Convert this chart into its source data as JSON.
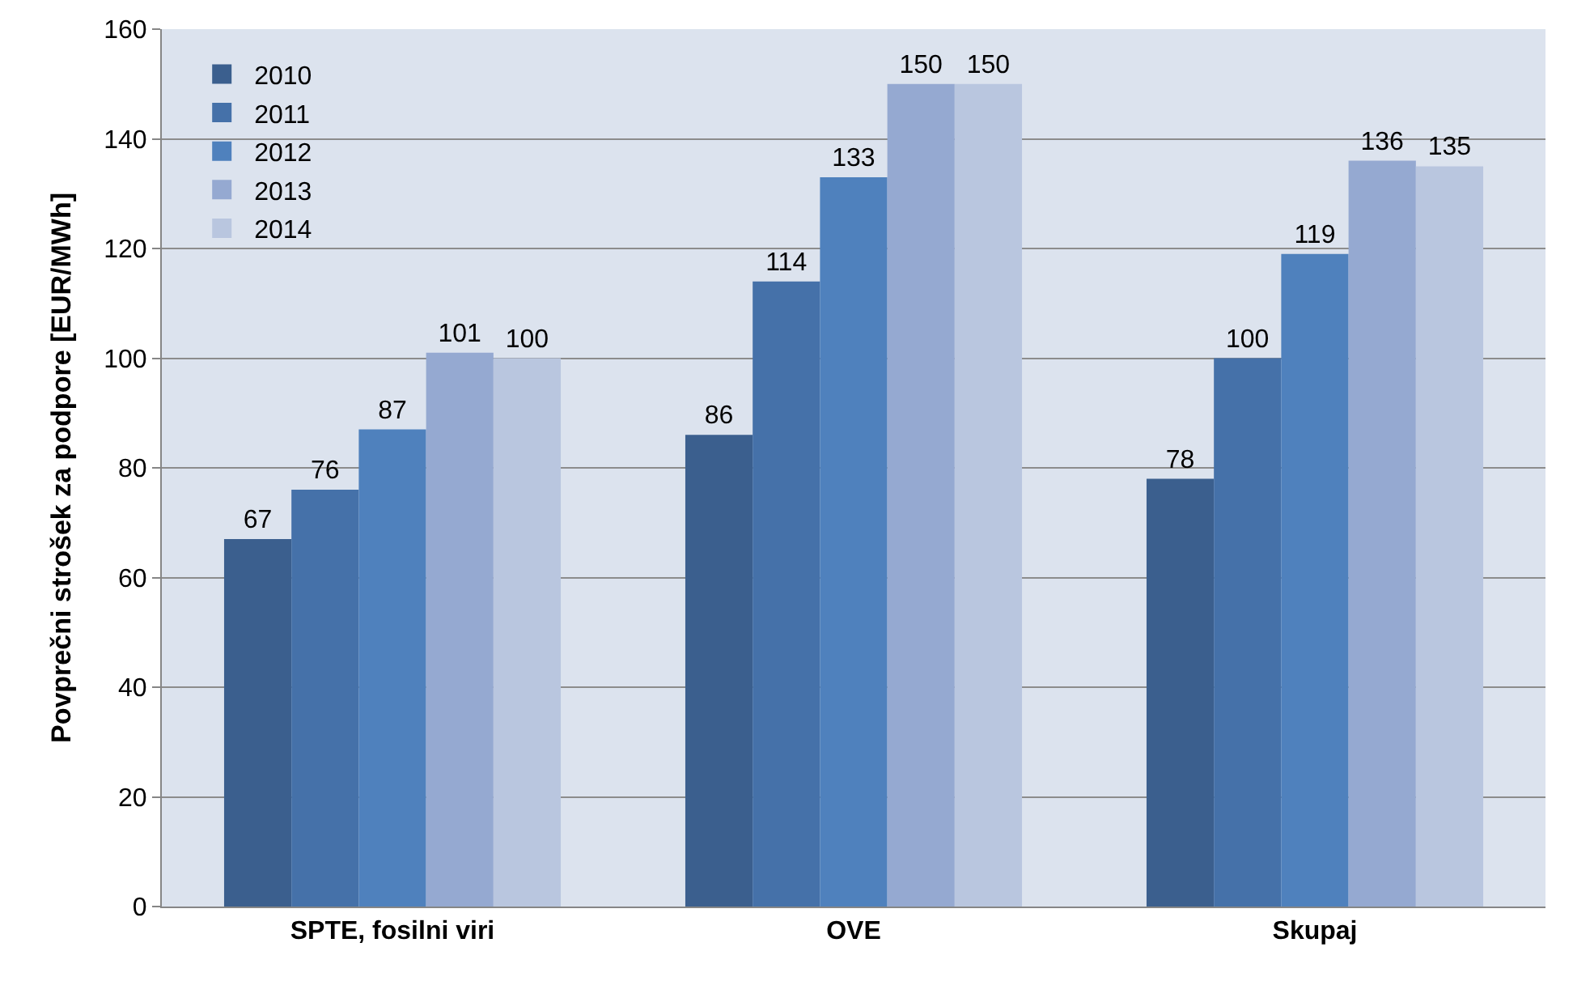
{
  "chart_data": {
    "type": "bar",
    "ylabel": "Povprečni strošek za podpore [EUR/MWh]",
    "categories": [
      "SPTE, fosilni viri",
      "OVE",
      "Skupaj"
    ],
    "series": [
      {
        "name": "2010",
        "color": "#3b5f8e",
        "values": [
          67,
          86,
          78
        ]
      },
      {
        "name": "2011",
        "color": "#4571a9",
        "values": [
          76,
          114,
          100
        ]
      },
      {
        "name": "2012",
        "color": "#4f81bd",
        "values": [
          87,
          133,
          119
        ]
      },
      {
        "name": "2013",
        "color": "#95a9d1",
        "values": [
          101,
          150,
          136
        ]
      },
      {
        "name": "2014",
        "color": "#b9c6df",
        "values": [
          100,
          150,
          135
        ]
      }
    ],
    "ylim": [
      0,
      160
    ],
    "yticks": [
      0,
      20,
      40,
      60,
      80,
      100,
      120,
      140,
      160
    ],
    "grid": "y",
    "legend": "top left",
    "data_labels": true
  }
}
